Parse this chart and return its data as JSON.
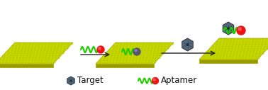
{
  "bg_color": "#ffffff",
  "sheet_top_color": "#c8d900",
  "sheet_dot_color1": "#b8ca00",
  "sheet_dot_color2": "#d8e830",
  "sheet_edge_color": "#aabb00",
  "sheet_side_color": "#999900",
  "sheet_border_color": "#aab000",
  "arrow_color": "#222222",
  "wavy_color": "#22cc00",
  "red_ball_color": "#ee1111",
  "red_ball_hi_color": "#ff6666",
  "dark_ball_color": "#555570",
  "dark_ball_hi_color": "#8899bb",
  "target_hex_color": "#556677",
  "target_hex_edge": "#223344",
  "legend_target_label": "Target",
  "legend_aptamer_label": "Aptamer",
  "legend_fontsize": 8.5,
  "figw": 3.78,
  "figh": 1.27,
  "dpi": 100
}
